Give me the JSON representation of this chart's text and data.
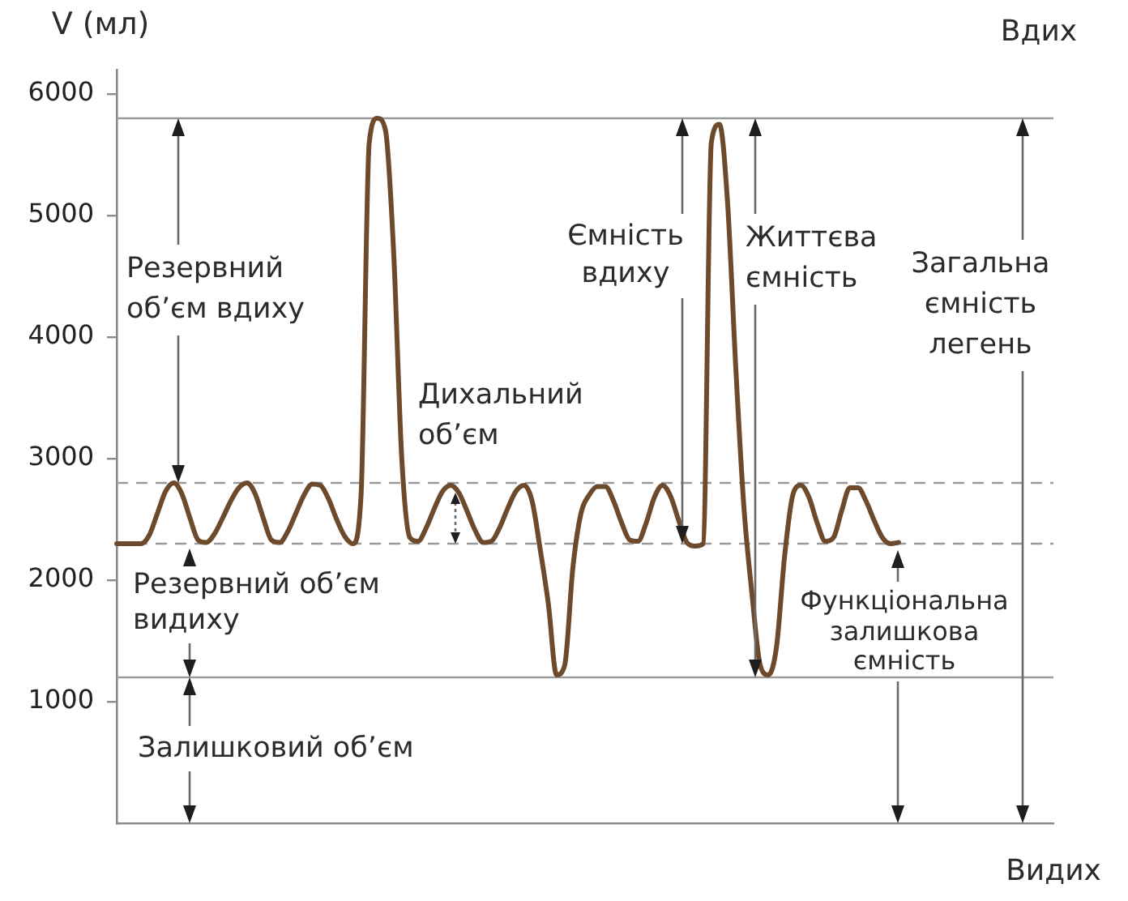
{
  "chart_data": {
    "type": "line",
    "ylabel": "V (мл)",
    "categories": [
      null,
      null,
      null,
      null,
      null,
      null,
      null,
      null,
      null,
      null,
      null,
      null,
      null,
      null,
      null,
      null,
      null,
      null,
      null,
      null,
      null,
      null,
      null,
      null,
      null,
      null,
      null,
      null,
      null,
      null,
      null,
      null,
      null,
      null,
      null,
      null,
      null,
      null,
      null,
      null,
      null,
      null,
      null,
      null,
      null,
      null,
      null,
      null,
      null,
      null,
      null,
      null,
      null,
      null,
      null,
      null,
      null,
      null,
      null,
      null,
      null,
      null,
      null,
      null,
      null,
      null,
      null,
      null,
      null,
      null,
      null,
      null,
      null,
      null,
      null,
      null,
      null,
      null,
      null,
      null,
      null,
      null,
      null,
      null,
      null,
      null,
      null,
      null,
      null,
      null,
      null,
      null,
      null,
      null,
      null,
      null,
      null,
      null,
      null,
      null,
      null,
      null,
      null,
      null,
      null,
      null,
      null,
      null,
      null,
      null,
      null,
      null,
      null,
      null,
      null,
      null
    ],
    "values": [
      2300,
      2300,
      2300,
      2300,
      2370,
      2550,
      2730,
      2800,
      2710,
      2510,
      2330,
      2310,
      2380,
      2510,
      2650,
      2760,
      2800,
      2710,
      2510,
      2330,
      2310,
      2400,
      2550,
      2700,
      2790,
      2780,
      2670,
      2500,
      2360,
      2300,
      2700,
      5600,
      5800,
      5700,
      4700,
      3000,
      2350,
      2320,
      2430,
      2590,
      2730,
      2780,
      2720,
      2570,
      2410,
      2310,
      2320,
      2430,
      2590,
      2730,
      2780,
      2650,
      2250,
      1800,
      1220,
      1300,
      2100,
      2550,
      2700,
      2770,
      2770,
      2650,
      2470,
      2330,
      2320,
      2470,
      2680,
      2780,
      2690,
      2490,
      2310,
      2280,
      2300,
      5600,
      5750,
      5100,
      3750,
      2600,
      1880,
      1300,
      1220,
      1450,
      2200,
      2700,
      2780,
      2680,
      2470,
      2320,
      2350,
      2570,
      2760,
      2760,
      2650,
      2490,
      2350,
      2300,
      2310,
      null,
      null,
      null,
      null,
      null,
      null,
      null,
      null,
      null,
      null,
      null,
      null,
      null,
      null,
      null,
      null,
      null,
      null,
      null
    ],
    "color": "#6e4a2c",
    "ylim": [
      0,
      6200
    ],
    "yticks": [
      1000,
      2000,
      3000,
      4000,
      5000,
      6000
    ],
    "tick_labels": "y",
    "marker": "none",
    "ref_lines": [
      {
        "axis": "y",
        "value": 5800,
        "color": "#9a9a9a",
        "line_style": "solid"
      },
      {
        "axis": "y",
        "value": 2800,
        "color": "#9a9a9a",
        "line_style": "dashed"
      },
      {
        "axis": "y",
        "value": 2300,
        "color": "#9a9a9a",
        "line_style": "dashed"
      },
      {
        "axis": "y",
        "value": 1200,
        "color": "#9a9a9a",
        "line_style": "solid"
      }
    ],
    "annotations": [
      "Вдих",
      "Резервний об’єм вдиху",
      "Дихальний об’єм",
      "Ємність вдиху",
      "Життєва ємність",
      "Загальна ємність легень",
      "Резервний об’єм видиху",
      "Функціональна залишкова ємність",
      "Залишковий об’єм",
      "Видих"
    ]
  }
}
